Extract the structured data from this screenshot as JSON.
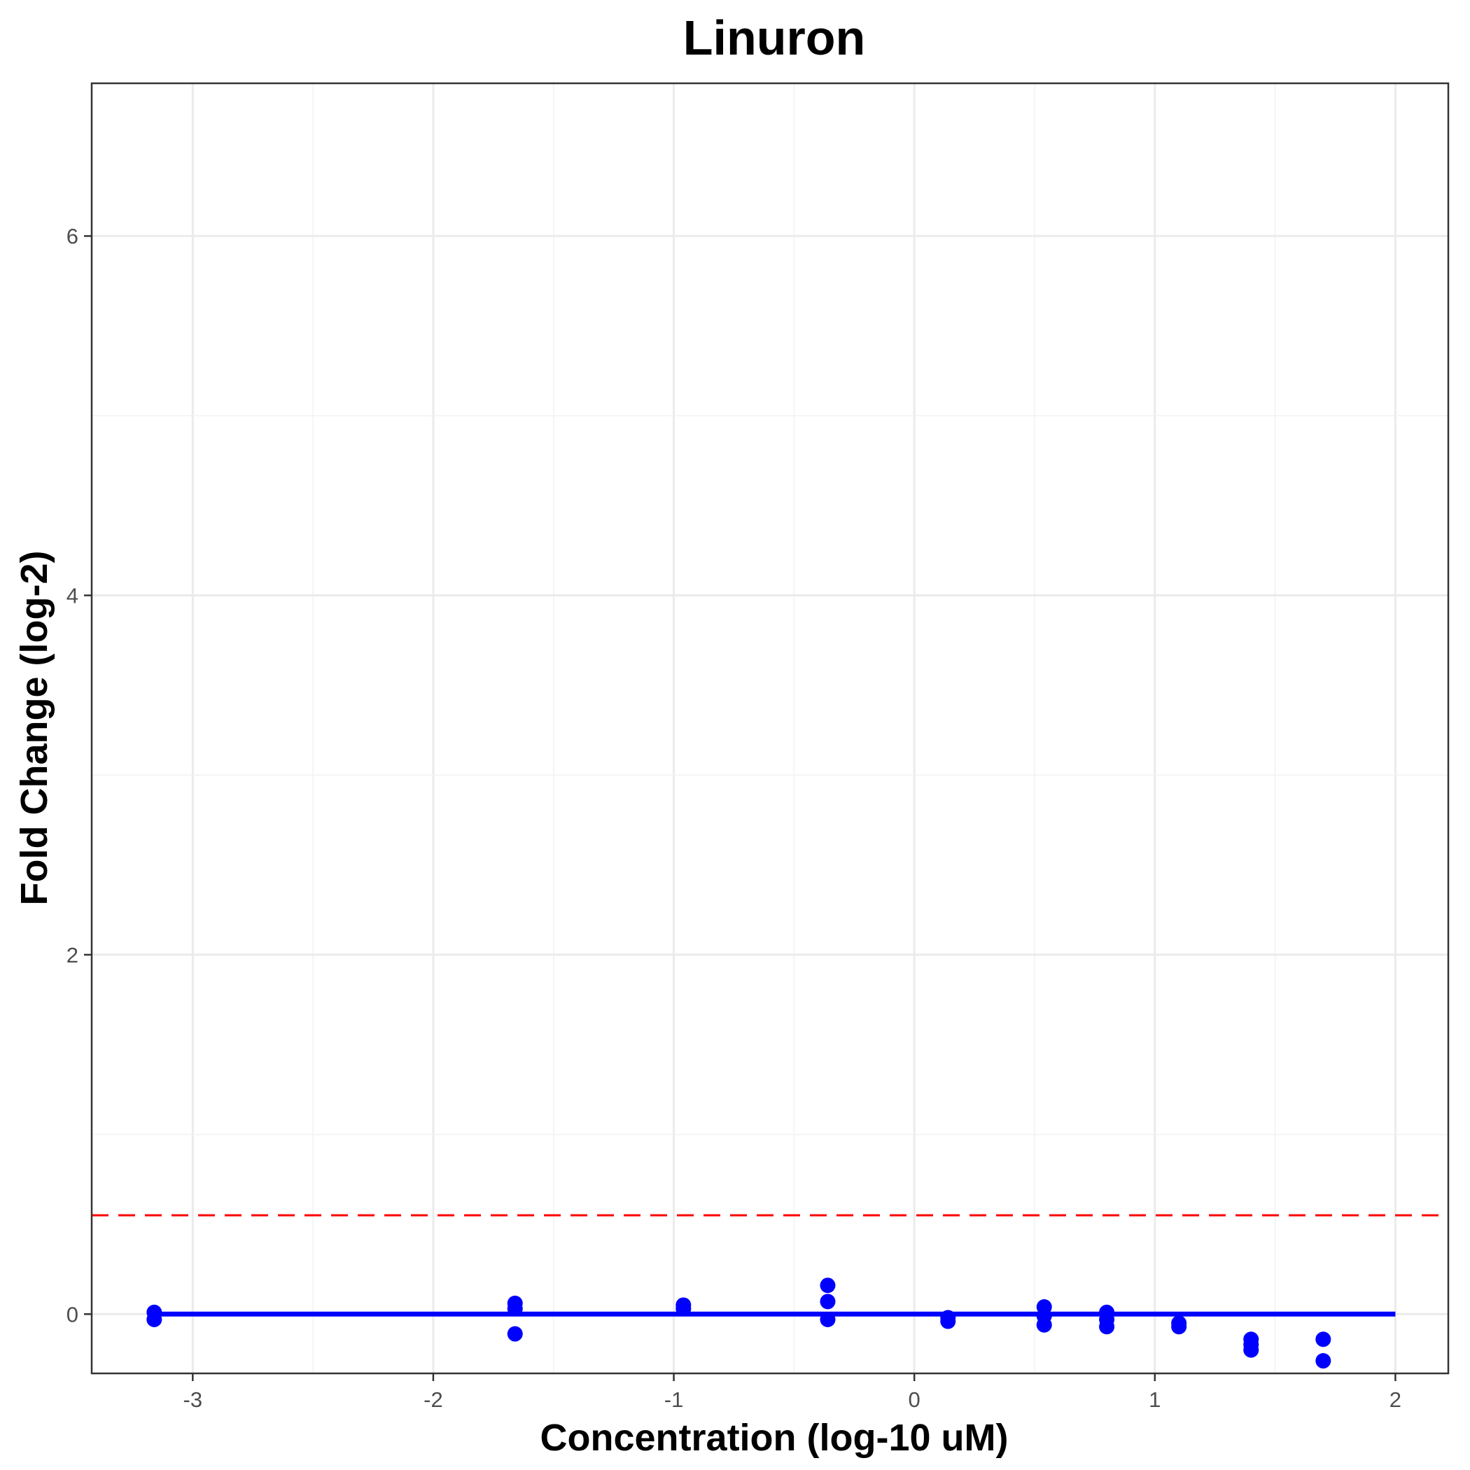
{
  "chart_data": {
    "type": "scatter",
    "title": "Linuron",
    "xlabel": "Concentration (log-10 uM)",
    "ylabel": "Fold Change (log-2)",
    "xlim": [
      -3.42,
      2.22
    ],
    "ylim": [
      -0.33,
      6.85
    ],
    "x_ticks": [
      -3,
      -2,
      -1,
      0,
      1,
      2
    ],
    "y_ticks": [
      0,
      2,
      4,
      6
    ],
    "x_tick_labels": [
      "-3",
      "-2",
      "-1",
      "0",
      "1",
      "2"
    ],
    "y_tick_labels": [
      "0",
      "2",
      "4",
      "6"
    ],
    "grid": true,
    "points": [
      {
        "x": -3.16,
        "y": 0.01
      },
      {
        "x": -3.16,
        "y": -0.03
      },
      {
        "x": -1.66,
        "y": 0.06
      },
      {
        "x": -1.66,
        "y": 0.03
      },
      {
        "x": -1.66,
        "y": -0.11
      },
      {
        "x": -0.96,
        "y": 0.05
      },
      {
        "x": -0.96,
        "y": 0.03
      },
      {
        "x": -0.36,
        "y": 0.16
      },
      {
        "x": -0.36,
        "y": 0.07
      },
      {
        "x": -0.36,
        "y": -0.03
      },
      {
        "x": 0.14,
        "y": -0.02
      },
      {
        "x": 0.14,
        "y": -0.04
      },
      {
        "x": 0.54,
        "y": 0.04
      },
      {
        "x": 0.54,
        "y": -0.01
      },
      {
        "x": 0.54,
        "y": -0.06
      },
      {
        "x": 0.8,
        "y": 0.01
      },
      {
        "x": 0.8,
        "y": -0.03
      },
      {
        "x": 0.8,
        "y": -0.07
      },
      {
        "x": 1.1,
        "y": -0.05
      },
      {
        "x": 1.1,
        "y": -0.07
      },
      {
        "x": 1.4,
        "y": -0.14
      },
      {
        "x": 1.4,
        "y": -0.17
      },
      {
        "x": 1.4,
        "y": -0.2
      },
      {
        "x": 1.7,
        "y": -0.14
      },
      {
        "x": 1.7,
        "y": -0.26
      }
    ],
    "fit_line": {
      "x": [
        -3.16,
        2.0
      ],
      "y": [
        0.0,
        0.0
      ],
      "color": "#0000ff"
    },
    "threshold_line": {
      "y": 0.55,
      "style": "dashed",
      "color": "#ff0000"
    },
    "point_color": "#0000ff"
  }
}
